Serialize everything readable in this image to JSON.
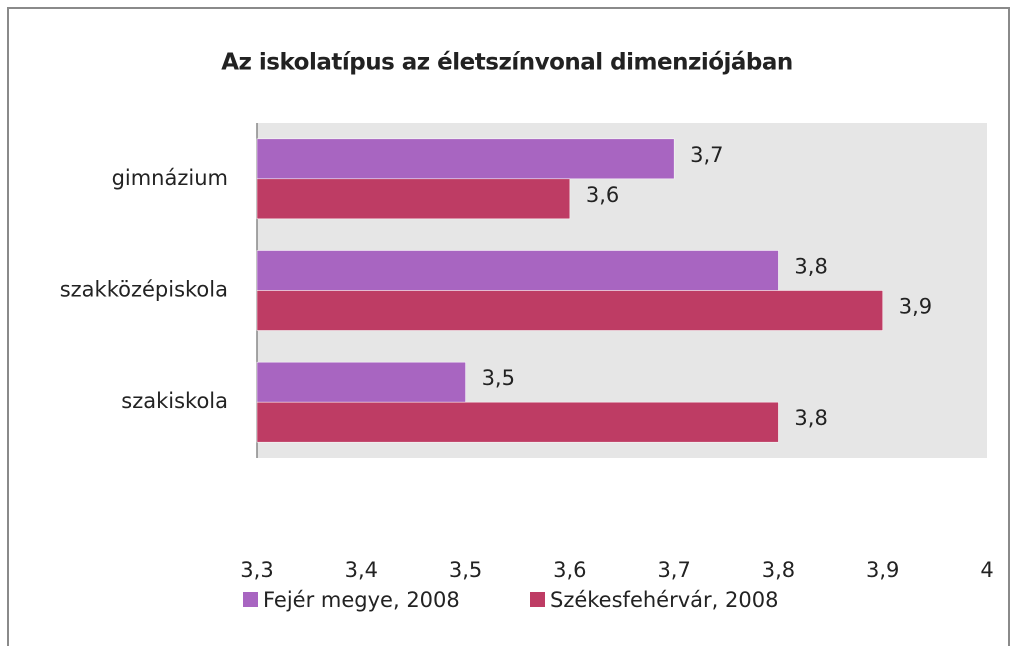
{
  "chart_data": {
    "type": "hbar",
    "title": "Az iskolatípus az életszínvonal dimenziójában",
    "categories": [
      "gimnázium",
      "szakközépiskola",
      "szakiskola"
    ],
    "series": [
      {
        "name": "Fejér megye, 2008",
        "color": "#a865c1",
        "values": [
          3.7,
          3.8,
          3.5
        ],
        "value_labels": [
          "3,7",
          "3,8",
          "3,5"
        ]
      },
      {
        "name": "Székesfehérvár, 2008",
        "color": "#be3c64",
        "values": [
          3.6,
          3.9,
          3.8
        ],
        "value_labels": [
          "3,6",
          "3,9",
          "3,8"
        ]
      }
    ],
    "xlim": [
      3.3,
      4
    ],
    "xticks": [
      {
        "value": 3.3,
        "label": "3,3"
      },
      {
        "value": 3.4,
        "label": "3,4"
      },
      {
        "value": 3.5,
        "label": "3,5"
      },
      {
        "value": 3.6,
        "label": "3,6"
      },
      {
        "value": 3.7,
        "label": "3,7"
      },
      {
        "value": 3.8,
        "label": "3,8"
      },
      {
        "value": 3.9,
        "label": "3,9"
      },
      4
    ],
    "legend": "bottom"
  }
}
